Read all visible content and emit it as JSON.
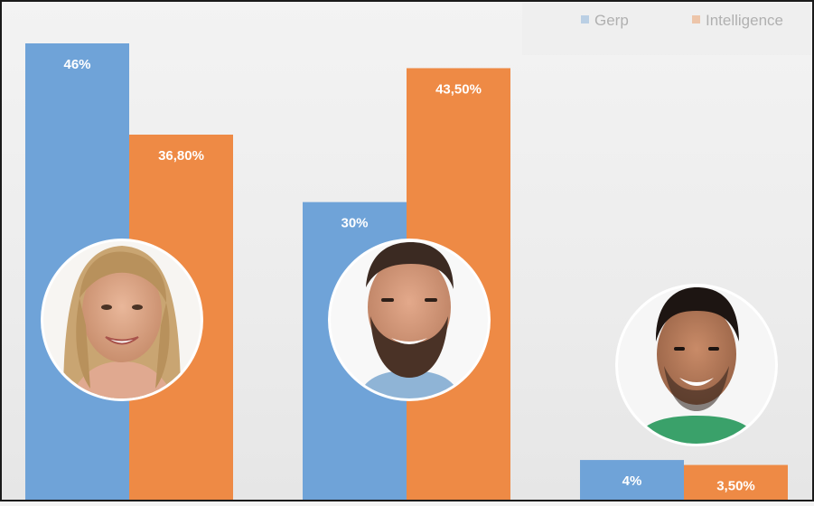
{
  "chart_data": {
    "type": "bar",
    "categories": [
      "",
      "",
      ""
    ],
    "series": [
      {
        "name": "Gerp",
        "color": "#6fa3d8",
        "values": [
          46,
          30,
          4
        ],
        "labels": [
          "46%",
          "30%",
          "4%"
        ]
      },
      {
        "name": "Intelligence",
        "color": "#ee8a45",
        "values": [
          36.8,
          43.5,
          3.5
        ],
        "labels": [
          "36,80%",
          "43,50%",
          "3,50%"
        ]
      }
    ],
    "ylim": [
      0,
      50
    ],
    "grid": false,
    "legend": "top-right",
    "title": "",
    "xlabel": "",
    "ylabel": "",
    "photos": [
      "candidate-photo-1",
      "candidate-photo-2",
      "candidate-photo-3"
    ]
  }
}
